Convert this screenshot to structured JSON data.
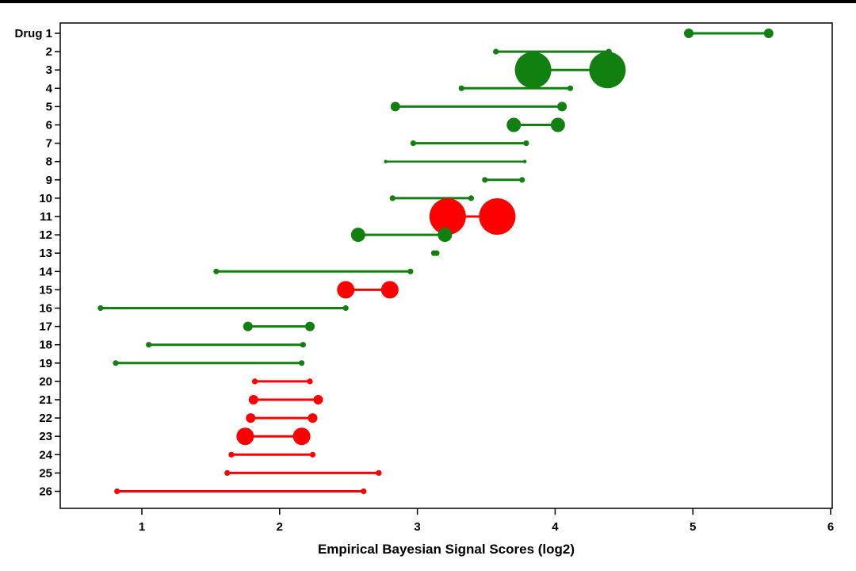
{
  "chart_data": {
    "type": "dot-range",
    "xlabel": "Empirical Bayesian Signal  Scores (log2)",
    "xlim": [
      0.5,
      6
    ],
    "xticks": [
      1,
      2,
      3,
      4,
      5,
      6
    ],
    "grid": false,
    "colors": {
      "green": "#118011",
      "red": "#ff0000"
    },
    "rows": [
      {
        "label": "Drug 1",
        "low": 4.97,
        "high": 5.55,
        "color": "green",
        "size": "small"
      },
      {
        "label": "2",
        "low": 3.57,
        "high": 4.39,
        "color": "green",
        "size": "tiny"
      },
      {
        "label": "3",
        "low": 3.84,
        "high": 4.38,
        "color": "green",
        "size": "huge"
      },
      {
        "label": "4",
        "low": 3.32,
        "high": 4.11,
        "color": "green",
        "size": "tiny"
      },
      {
        "label": "5",
        "low": 2.84,
        "high": 4.05,
        "color": "green",
        "size": "small"
      },
      {
        "label": "6",
        "low": 3.7,
        "high": 4.02,
        "color": "green",
        "size": "medium"
      },
      {
        "label": "7",
        "low": 2.97,
        "high": 3.79,
        "color": "green",
        "size": "tiny"
      },
      {
        "label": "8",
        "low": 2.77,
        "high": 3.78,
        "color": "green",
        "size": "dot"
      },
      {
        "label": "9",
        "low": 3.49,
        "high": 3.76,
        "color": "green",
        "size": "tiny"
      },
      {
        "label": "10",
        "low": 2.82,
        "high": 3.39,
        "color": "green",
        "size": "tiny"
      },
      {
        "label": "11",
        "low": 3.22,
        "high": 3.58,
        "color": "red",
        "size": "huge"
      },
      {
        "label": "12",
        "low": 2.57,
        "high": 3.2,
        "color": "green",
        "size": "medium"
      },
      {
        "label": "13",
        "low": 3.12,
        "high": 3.14,
        "color": "green",
        "size": "tiny"
      },
      {
        "label": "14",
        "low": 1.54,
        "high": 2.95,
        "color": "green",
        "size": "tiny"
      },
      {
        "label": "15",
        "low": 2.48,
        "high": 2.8,
        "color": "red",
        "size": "large"
      },
      {
        "label": "16",
        "low": 0.7,
        "high": 2.48,
        "color": "green",
        "size": "tiny"
      },
      {
        "label": "17",
        "low": 1.77,
        "high": 2.22,
        "color": "green",
        "size": "small"
      },
      {
        "label": "18",
        "low": 1.05,
        "high": 2.17,
        "color": "green",
        "size": "tiny"
      },
      {
        "label": "19",
        "low": 0.81,
        "high": 2.16,
        "color": "green",
        "size": "tiny"
      },
      {
        "label": "20",
        "low": 1.82,
        "high": 2.22,
        "color": "red",
        "size": "tiny"
      },
      {
        "label": "21",
        "low": 1.81,
        "high": 2.28,
        "color": "red",
        "size": "small"
      },
      {
        "label": "22",
        "low": 1.79,
        "high": 2.24,
        "color": "red",
        "size": "small"
      },
      {
        "label": "23",
        "low": 1.75,
        "high": 2.16,
        "color": "red",
        "size": "large"
      },
      {
        "label": "24",
        "low": 1.65,
        "high": 2.24,
        "color": "red",
        "size": "tiny"
      },
      {
        "label": "25",
        "low": 1.62,
        "high": 2.72,
        "color": "red",
        "size": "tiny"
      },
      {
        "label": "26",
        "low": 0.82,
        "high": 2.61,
        "color": "red",
        "size": "tiny"
      }
    ]
  }
}
